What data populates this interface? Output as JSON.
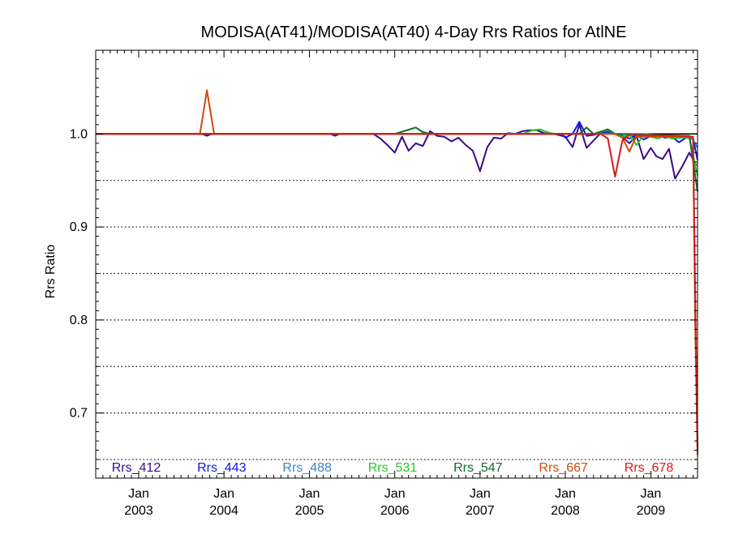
{
  "chart_data": {
    "type": "line",
    "title": "MODISA(AT41)/MODISA(AT40) 4-Day Rrs Ratios for AtlNE",
    "xlabel": "",
    "ylabel": "Rrs Ratio",
    "xlim": [
      "2002-07-01",
      "2009-07-20"
    ],
    "ylim": [
      0.63,
      1.09
    ],
    "yticks": [
      0.7,
      0.8,
      0.9,
      1.0
    ],
    "ytick_labels": [
      "0.7",
      "0.8",
      "0.9",
      "1.0"
    ],
    "xticks": [
      "2003-01-01",
      "2004-01-01",
      "2005-01-01",
      "2006-01-01",
      "2007-01-01",
      "2008-01-01",
      "2009-01-01"
    ],
    "xtick_labels": [
      [
        "Jan",
        "2003"
      ],
      [
        "Jan",
        "2004"
      ],
      [
        "Jan",
        "2005"
      ],
      [
        "Jan",
        "2006"
      ],
      [
        "Jan",
        "2007"
      ],
      [
        "Jan",
        "2008"
      ],
      [
        "Jan",
        "2009"
      ]
    ],
    "dotted_gridlines": [
      0.65,
      0.7,
      0.75,
      0.8,
      0.85,
      0.9,
      0.95
    ],
    "reference_line": 1.0,
    "legend_position": "bottom",
    "series": [
      {
        "name": "Rrs_412",
        "color": "#3a0a8c",
        "points": [
          [
            "2002-07-01",
            1.0
          ],
          [
            "2003-10-01",
            1.0
          ],
          [
            "2003-10-20",
            0.998
          ],
          [
            "2003-11-10",
            1.0
          ],
          [
            "2005-04-01",
            1.0
          ],
          [
            "2005-04-20",
            0.998
          ],
          [
            "2005-05-10",
            1.0
          ],
          [
            "2005-10-01",
            1.0
          ],
          [
            "2005-11-01",
            0.995
          ],
          [
            "2005-12-01",
            0.988
          ],
          [
            "2006-01-01",
            0.98
          ],
          [
            "2006-02-01",
            0.997
          ],
          [
            "2006-03-01",
            0.982
          ],
          [
            "2006-04-01",
            0.99
          ],
          [
            "2006-05-01",
            0.987
          ],
          [
            "2006-06-01",
            1.003
          ],
          [
            "2006-07-01",
            0.998
          ],
          [
            "2006-08-01",
            0.997
          ],
          [
            "2006-09-01",
            0.992
          ],
          [
            "2006-10-01",
            0.996
          ],
          [
            "2006-11-01",
            0.988
          ],
          [
            "2006-12-01",
            0.982
          ],
          [
            "2007-01-01",
            0.96
          ],
          [
            "2007-02-01",
            0.986
          ],
          [
            "2007-03-01",
            0.996
          ],
          [
            "2007-04-01",
            0.995
          ],
          [
            "2007-05-01",
            1.001
          ],
          [
            "2007-06-01",
            1.0
          ],
          [
            "2007-07-01",
            1.003
          ],
          [
            "2007-08-01",
            1.004
          ],
          [
            "2007-09-01",
            1.004
          ],
          [
            "2007-10-01",
            1.001
          ],
          [
            "2007-11-15",
            1.0
          ],
          [
            "2008-01-01",
            0.997
          ],
          [
            "2008-02-01",
            0.986
          ],
          [
            "2008-03-01",
            1.01
          ],
          [
            "2008-04-01",
            0.985
          ],
          [
            "2008-05-01",
            0.993
          ],
          [
            "2008-06-01",
            1.001
          ],
          [
            "2008-07-01",
            1.002
          ],
          [
            "2008-08-01",
            1.0
          ],
          [
            "2008-09-01",
            0.997
          ],
          [
            "2008-10-01",
            0.99
          ],
          [
            "2008-11-01",
            0.998
          ],
          [
            "2008-12-01",
            0.973
          ],
          [
            "2009-01-01",
            0.985
          ],
          [
            "2009-01-25",
            0.976
          ],
          [
            "2009-02-20",
            0.973
          ],
          [
            "2009-03-20",
            0.984
          ],
          [
            "2009-04-15",
            0.952
          ],
          [
            "2009-05-15",
            0.965
          ],
          [
            "2009-06-15",
            0.98
          ],
          [
            "2009-07-15",
            0.966
          ]
        ]
      },
      {
        "name": "Rrs_443",
        "color": "#0a1ae8",
        "points": [
          [
            "2002-07-01",
            1.0
          ],
          [
            "2007-12-15",
            1.0
          ],
          [
            "2008-01-01",
            0.996
          ],
          [
            "2008-02-01",
            1.0
          ],
          [
            "2008-03-01",
            1.013
          ],
          [
            "2008-04-01",
            0.998
          ],
          [
            "2008-05-01",
            0.999
          ],
          [
            "2008-06-01",
            1.001
          ],
          [
            "2008-07-01",
            1.002
          ],
          [
            "2008-08-01",
            1.0
          ],
          [
            "2008-09-01",
            0.998
          ],
          [
            "2008-10-01",
            0.995
          ],
          [
            "2008-11-01",
            0.999
          ],
          [
            "2008-12-01",
            0.994
          ],
          [
            "2009-01-01",
            0.998
          ],
          [
            "2009-02-01",
            0.999
          ],
          [
            "2009-03-01",
            0.996
          ],
          [
            "2009-04-01",
            0.997
          ],
          [
            "2009-05-01",
            0.991
          ],
          [
            "2009-06-01",
            0.996
          ],
          [
            "2009-07-01",
            0.995
          ],
          [
            "2009-07-20",
            0.972
          ]
        ]
      },
      {
        "name": "Rrs_488",
        "color": "#3a86c8",
        "points": [
          [
            "2002-07-01",
            1.0
          ],
          [
            "2008-12-01",
            1.0
          ],
          [
            "2009-03-01",
            0.998
          ],
          [
            "2009-06-01",
            0.997
          ],
          [
            "2009-07-01",
            0.994
          ],
          [
            "2009-07-20",
            0.985
          ]
        ]
      },
      {
        "name": "Rrs_531",
        "color": "#22cc22",
        "points": [
          [
            "2002-07-01",
            1.0
          ],
          [
            "2007-07-01",
            1.0
          ],
          [
            "2007-08-15",
            1.004
          ],
          [
            "2007-09-15",
            1.005
          ],
          [
            "2007-10-15",
            1.002
          ],
          [
            "2007-11-15",
            1.0
          ],
          [
            "2008-05-01",
            1.0
          ],
          [
            "2008-07-01",
            1.004
          ],
          [
            "2008-08-01",
            1.0
          ],
          [
            "2008-09-01",
            0.997
          ],
          [
            "2008-10-01",
            0.999
          ],
          [
            "2008-11-01",
            0.988
          ],
          [
            "2008-12-01",
            0.999
          ],
          [
            "2009-01-01",
            0.997
          ],
          [
            "2009-02-01",
            0.995
          ],
          [
            "2009-03-01",
            0.998
          ],
          [
            "2009-04-01",
            0.995
          ],
          [
            "2009-05-15",
            0.996
          ],
          [
            "2009-06-15",
            0.996
          ],
          [
            "2009-07-20",
            0.955
          ]
        ]
      },
      {
        "name": "Rrs_547",
        "color": "#0e6b2c",
        "points": [
          [
            "2002-07-01",
            1.0
          ],
          [
            "2006-01-01",
            1.0
          ],
          [
            "2006-04-01",
            1.007
          ],
          [
            "2006-05-01",
            1.002
          ],
          [
            "2006-06-01",
            1.0
          ],
          [
            "2008-03-01",
            1.0
          ],
          [
            "2008-04-01",
            1.007
          ],
          [
            "2008-05-01",
            1.0
          ],
          [
            "2008-07-01",
            1.005
          ],
          [
            "2008-08-01",
            1.0
          ],
          [
            "2009-06-15",
            0.998
          ],
          [
            "2009-07-20",
            0.938
          ]
        ]
      },
      {
        "name": "Rrs_667",
        "color": "#d24a0c",
        "points": [
          [
            "2002-07-01",
            1.0
          ],
          [
            "2003-09-20",
            1.0
          ],
          [
            "2003-10-20",
            1.047
          ],
          [
            "2003-11-20",
            1.0
          ],
          [
            "2008-08-01",
            1.0
          ],
          [
            "2008-09-01",
            0.996
          ],
          [
            "2008-10-01",
            0.981
          ],
          [
            "2008-11-01",
            0.998
          ],
          [
            "2008-12-01",
            0.997
          ],
          [
            "2009-06-01",
            0.997
          ],
          [
            "2009-07-01",
            0.996
          ],
          [
            "2009-07-20",
            0.655
          ]
        ]
      },
      {
        "name": "Rrs_678",
        "color": "#d61a1a",
        "points": [
          [
            "2002-07-01",
            1.0
          ],
          [
            "2008-06-01",
            1.0
          ],
          [
            "2008-07-01",
            0.995
          ],
          [
            "2008-08-01",
            0.954
          ],
          [
            "2008-09-01",
            0.993
          ],
          [
            "2008-10-01",
            0.999
          ],
          [
            "2009-06-01",
            0.998
          ],
          [
            "2009-07-01",
            0.997
          ],
          [
            "2009-07-10",
            0.8
          ],
          [
            "2009-07-20",
            0.66
          ]
        ]
      }
    ]
  }
}
